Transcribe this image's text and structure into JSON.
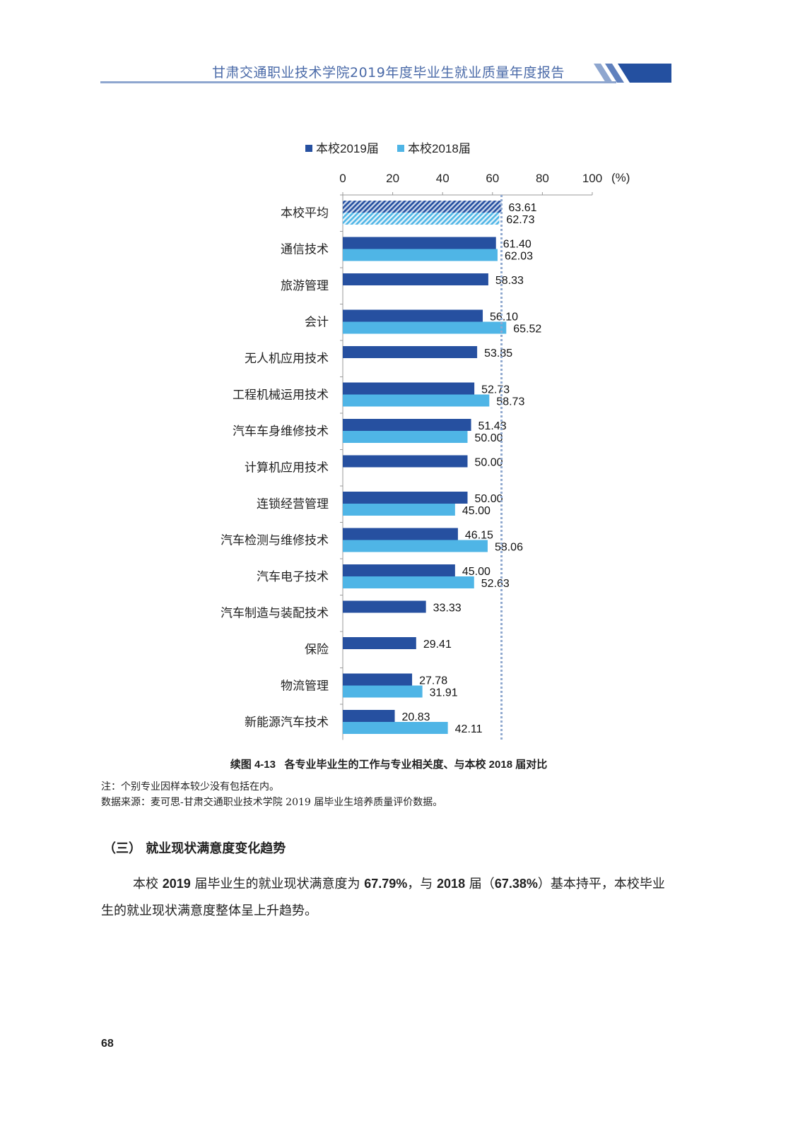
{
  "header": {
    "title": "甘肃交通职业技术学院2019年度毕业生就业质量年度报告"
  },
  "colors": {
    "series_2019": "#2650a0",
    "series_2018": "#4fb5e6",
    "accent": "#2450a0",
    "reference_line": "#8fa8cf"
  },
  "chart_data": {
    "type": "bar",
    "orientation": "horizontal",
    "title": "续图 4-13 各专业毕业生的工作与专业相关度、与本校 2018 届对比",
    "xlabel": "(%)",
    "xlim": [
      0,
      100
    ],
    "xticks": [
      "0",
      "20",
      "40",
      "60",
      "80",
      "100"
    ],
    "legend_position": "top",
    "reference_line": 63.61,
    "categories": [
      "本校平均",
      "通信技术",
      "旅游管理",
      "会计",
      "无人机应用技术",
      "工程机械运用技术",
      "汽车车身维修技术",
      "计算机应用技术",
      "连锁经营管理",
      "汽车检测与维修技术",
      "汽车电子技术",
      "汽车制造与装配技术",
      "保险",
      "物流管理",
      "新能源汽车技术"
    ],
    "series": [
      {
        "name": "本校2019届",
        "values": [
          "63.61",
          "61.40",
          "58.33",
          "56.10",
          "53.85",
          "52.73",
          "51.43",
          "50.00",
          "50.00",
          "46.15",
          "45.00",
          "33.33",
          "29.41",
          "27.78",
          "20.83"
        ]
      },
      {
        "name": "本校2018届",
        "values": [
          "62.73",
          "62.03",
          null,
          "65.52",
          null,
          "58.73",
          "50.00",
          null,
          "45.00",
          "58.06",
          "52.63",
          null,
          null,
          "31.91",
          "42.11"
        ]
      }
    ]
  },
  "caption": {
    "label": "续图 4-13",
    "text": "各专业毕业生的工作与专业相关度、与本校 2018 届对比"
  },
  "notes": {
    "note": "注：个别专业因样本较少没有包括在内。",
    "source": "数据来源：麦可思-甘肃交通职业技术学院 2019 届毕业生培养质量评价数据。"
  },
  "section": {
    "title": "（三） 就业现状满意度变化趋势"
  },
  "paragraph": {
    "p1": "本校 ",
    "y2019": "2019",
    "p2": " 届毕业生的就业现状满意度为 ",
    "v2019": "67.79%",
    "p3": "，与 ",
    "y2018": "2018",
    "p4": " 届（",
    "v2018": "67.38%",
    "p5": "）基本持平，本校毕业生的就业现状满意度整体呈上升趋势。"
  },
  "page_number": "68"
}
